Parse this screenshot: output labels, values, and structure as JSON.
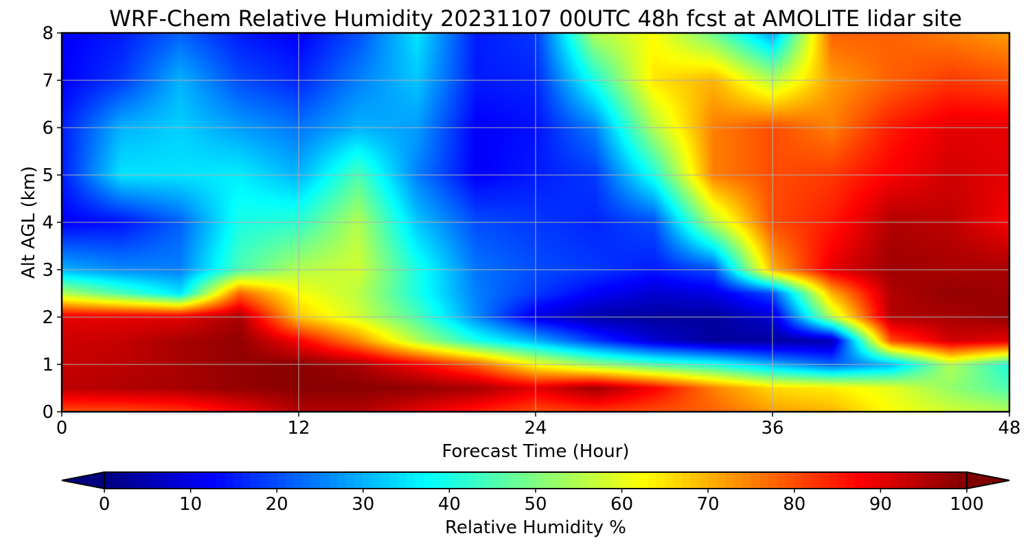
{
  "chart_data": {
    "type": "heatmap",
    "title": "WRF-Chem Relative Humidity 20231107 00UTC 48h fcst at AMOLITE lidar site",
    "xlabel": "Forecast Time (Hour)",
    "ylabel": "Alt AGL (km)",
    "xlim": [
      0,
      48
    ],
    "ylim": [
      0,
      8
    ],
    "x_ticks": [
      0,
      12,
      24,
      36,
      48
    ],
    "y_ticks": [
      0,
      1,
      2,
      3,
      4,
      5,
      6,
      7,
      8
    ],
    "grid": true,
    "colorscale": "jet",
    "colorbar": {
      "label": "Relative Humidity %",
      "range": [
        0,
        100
      ],
      "ticks": [
        0,
        10,
        20,
        30,
        40,
        50,
        60,
        70,
        80,
        90,
        100
      ],
      "extend": "both",
      "placement": "bottom"
    },
    "x": [
      0,
      3,
      6,
      9,
      12,
      15,
      18,
      21,
      24,
      27,
      30,
      33,
      36,
      39,
      42,
      45,
      48
    ],
    "y": [
      0,
      0.5,
      1,
      1.5,
      2,
      2.5,
      3,
      4,
      5,
      6,
      7,
      8
    ],
    "z": [
      [
        80,
        80,
        82,
        88,
        95,
        95,
        90,
        85,
        80,
        82,
        80,
        78,
        72,
        70,
        62,
        58,
        55
      ],
      [
        94,
        95,
        96,
        98,
        99,
        99,
        98,
        96,
        90,
        97,
        88,
        75,
        66,
        64,
        60,
        52,
        45
      ],
      [
        93,
        94,
        96,
        98,
        99,
        96,
        88,
        78,
        62,
        52,
        45,
        40,
        30,
        22,
        30,
        55,
        40
      ],
      [
        92,
        93,
        96,
        98,
        88,
        74,
        55,
        40,
        30,
        18,
        8,
        3,
        3,
        5,
        80,
        92,
        90
      ],
      [
        90,
        90,
        90,
        96,
        68,
        58,
        45,
        26,
        10,
        4,
        3,
        3,
        8,
        55,
        95,
        96,
        98
      ],
      [
        55,
        45,
        35,
        78,
        62,
        56,
        40,
        25,
        18,
        12,
        8,
        10,
        20,
        70,
        95,
        98,
        97
      ],
      [
        30,
        26,
        25,
        45,
        55,
        58,
        40,
        24,
        20,
        18,
        15,
        20,
        70,
        90,
        97,
        96,
        96
      ],
      [
        12,
        14,
        22,
        40,
        42,
        55,
        32,
        20,
        18,
        16,
        20,
        55,
        80,
        85,
        95,
        94,
        88
      ],
      [
        15,
        35,
        35,
        36,
        30,
        45,
        25,
        12,
        15,
        18,
        40,
        75,
        80,
        82,
        88,
        92,
        90
      ],
      [
        15,
        30,
        33,
        28,
        24,
        30,
        28,
        12,
        14,
        25,
        55,
        75,
        80,
        75,
        85,
        90,
        90
      ],
      [
        12,
        18,
        30,
        20,
        16,
        25,
        32,
        15,
        16,
        40,
        65,
        70,
        55,
        72,
        78,
        82,
        80
      ],
      [
        12,
        15,
        22,
        15,
        12,
        20,
        35,
        15,
        18,
        55,
        62,
        48,
        28,
        78,
        78,
        75,
        72
      ]
    ]
  }
}
